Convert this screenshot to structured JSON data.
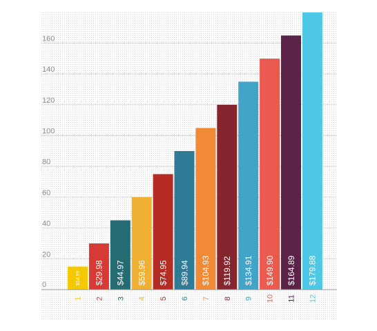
{
  "chart_data": {
    "type": "bar",
    "categories": [
      "1",
      "2",
      "3",
      "4",
      "5",
      "6",
      "7",
      "8",
      "9",
      "10",
      "11",
      "12"
    ],
    "values": [
      14.99,
      29.98,
      44.97,
      59.96,
      74.95,
      89.94,
      104.93,
      119.92,
      134.91,
      149.9,
      164.89,
      179.88
    ],
    "labels": [
      "$14.99",
      "$29.98",
      "$44.97",
      "$59.96",
      "$74.95",
      "$89.94",
      "$104.93",
      "$119.92",
      "$134.91",
      "$149.90",
      "$164.89",
      "$179.88"
    ],
    "colors": [
      "#f6c800",
      "#d63a34",
      "#256b74",
      "#f0b034",
      "#b52c24",
      "#2f7a94",
      "#f08a36",
      "#85262f",
      "#43a4c8",
      "#ea5a4e",
      "#5c2348",
      "#4fc8e6"
    ],
    "yticks": [
      "0",
      "20",
      "40",
      "60",
      "80",
      "100",
      "120",
      "140",
      "160"
    ],
    "ylim": [
      0,
      180
    ],
    "title": "",
    "xlabel": "",
    "ylabel": "",
    "grid": true,
    "legend": "none"
  }
}
